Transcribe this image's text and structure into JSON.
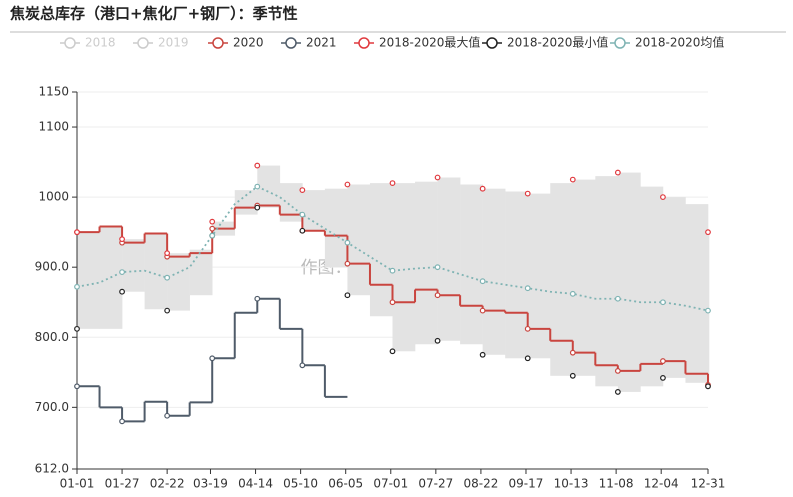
{
  "chart_data": {
    "type": "line",
    "title": "焦炭总库存（港口+焦化厂+钢厂）：季节性",
    "watermark": "作图：天风期货",
    "x": [
      0,
      13,
      26,
      39,
      52,
      65,
      78,
      91,
      104,
      117,
      130,
      143,
      156,
      169,
      182,
      195,
      208,
      221,
      234,
      247,
      260,
      273,
      286,
      299,
      312,
      325,
      338,
      351,
      364
    ],
    "xlim": [
      0,
      364
    ],
    "xticks": [
      {
        "value": 0,
        "label": "01-01"
      },
      {
        "value": 26,
        "label": "01-27"
      },
      {
        "value": 52,
        "label": "02-22"
      },
      {
        "value": 77,
        "label": "03-19"
      },
      {
        "value": 103,
        "label": "04-14"
      },
      {
        "value": 129,
        "label": "05-10"
      },
      {
        "value": 155,
        "label": "06-05"
      },
      {
        "value": 181,
        "label": "07-01"
      },
      {
        "value": 207,
        "label": "07-27"
      },
      {
        "value": 233,
        "label": "08-22"
      },
      {
        "value": 259,
        "label": "09-17"
      },
      {
        "value": 285,
        "label": "10-13"
      },
      {
        "value": 311,
        "label": "11-08"
      },
      {
        "value": 337,
        "label": "12-04"
      },
      {
        "value": 364,
        "label": "12-31"
      }
    ],
    "ylim": [
      612,
      1150
    ],
    "yticks": [
      {
        "value": 612,
        "label": "612.0"
      },
      {
        "value": 700,
        "label": "700.0"
      },
      {
        "value": 800,
        "label": "800.0"
      },
      {
        "value": 900,
        "label": "900.0"
      },
      1000,
      1100,
      1150
    ],
    "grid": true,
    "series": [
      {
        "name": "2018",
        "color": "#cccccc",
        "hidden": true
      },
      {
        "name": "2019",
        "color": "#cccccc",
        "hidden": true
      },
      {
        "name": "2020",
        "color": "#c9453f",
        "style": "step",
        "values": [
          950,
          958,
          935,
          948,
          915,
          920,
          955,
          985,
          988,
          975,
          952,
          945,
          905,
          875,
          850,
          868,
          860,
          845,
          838,
          835,
          812,
          795,
          778,
          760,
          752,
          762,
          766,
          748,
          732
        ]
      },
      {
        "name": "2021",
        "color": "#4f5b69",
        "style": "step",
        "values": [
          730,
          700,
          680,
          708,
          688,
          707,
          770,
          835,
          855,
          812,
          760,
          715,
          null,
          null,
          null,
          null,
          null,
          null,
          null,
          null,
          null,
          null,
          null,
          null,
          null,
          null,
          null,
          null,
          null
        ]
      },
      {
        "name": "2018-2020最大值",
        "color": "#e0393e",
        "style": "band-top",
        "values": [
          950,
          958,
          940,
          948,
          920,
          925,
          965,
          1010,
          1045,
          1020,
          1010,
          1012,
          1018,
          1020,
          1020,
          1022,
          1028,
          1018,
          1012,
          1008,
          1005,
          1020,
          1025,
          1030,
          1035,
          1015,
          1000,
          990,
          950
        ]
      },
      {
        "name": "2018-2020最小值",
        "color": "#222222",
        "style": "band-bottom",
        "values": [
          812,
          812,
          865,
          840,
          838,
          860,
          945,
          975,
          985,
          965,
          952,
          900,
          860,
          830,
          780,
          790,
          795,
          790,
          775,
          770,
          770,
          745,
          745,
          730,
          722,
          730,
          742,
          735,
          730
        ]
      },
      {
        "name": "2018-2020均值",
        "color": "#7fb3b3",
        "style": "dotted",
        "values": [
          872,
          878,
          893,
          895,
          885,
          900,
          945,
          990,
          1015,
          1000,
          975,
          955,
          935,
          915,
          895,
          898,
          900,
          890,
          880,
          875,
          870,
          865,
          862,
          855,
          855,
          850,
          850,
          845,
          838
        ]
      }
    ]
  }
}
